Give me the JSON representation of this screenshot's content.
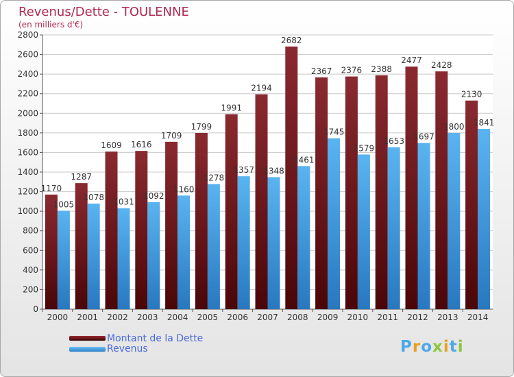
{
  "chart_data": {
    "type": "bar",
    "title": "Revenus/Dette - TOULENNE",
    "subtitle": "(en milliers d'€)",
    "categories": [
      "2000",
      "2001",
      "2002",
      "2003",
      "2004",
      "2005",
      "2006",
      "2007",
      "2008",
      "2009",
      "2010",
      "2011",
      "2012",
      "2013",
      "2014"
    ],
    "series": [
      {
        "name": "Montant de la Dette",
        "color": "#7a1a1f",
        "values": [
          1170,
          1287,
          1609,
          1616,
          1709,
          1799,
          1991,
          2194,
          2682,
          2367,
          2376,
          2388,
          2477,
          2428,
          2130
        ]
      },
      {
        "name": "Revenus",
        "color": "#4ea8e8",
        "values": [
          1005,
          1078,
          1031,
          1092,
          1160,
          1278,
          1357,
          1348,
          1461,
          1745,
          1579,
          1653,
          1697,
          1800,
          1841
        ]
      }
    ],
    "ylim": [
      0,
      2800
    ],
    "yticks": [
      0,
      200,
      400,
      600,
      800,
      1000,
      1200,
      1400,
      1600,
      1800,
      2000,
      2200,
      2400,
      2600,
      2800
    ],
    "grid": true,
    "legend": "bottom-left"
  },
  "logo": {
    "text": "Proxiti",
    "letters": [
      "P",
      "r",
      "o",
      "x",
      "i",
      "t",
      "i"
    ],
    "colors": [
      "#4ea8e8",
      "#e8a020",
      "#4ea8e8",
      "#8cc63f",
      "#e8a020",
      "#4ea8e8",
      "#8cc63f"
    ]
  }
}
